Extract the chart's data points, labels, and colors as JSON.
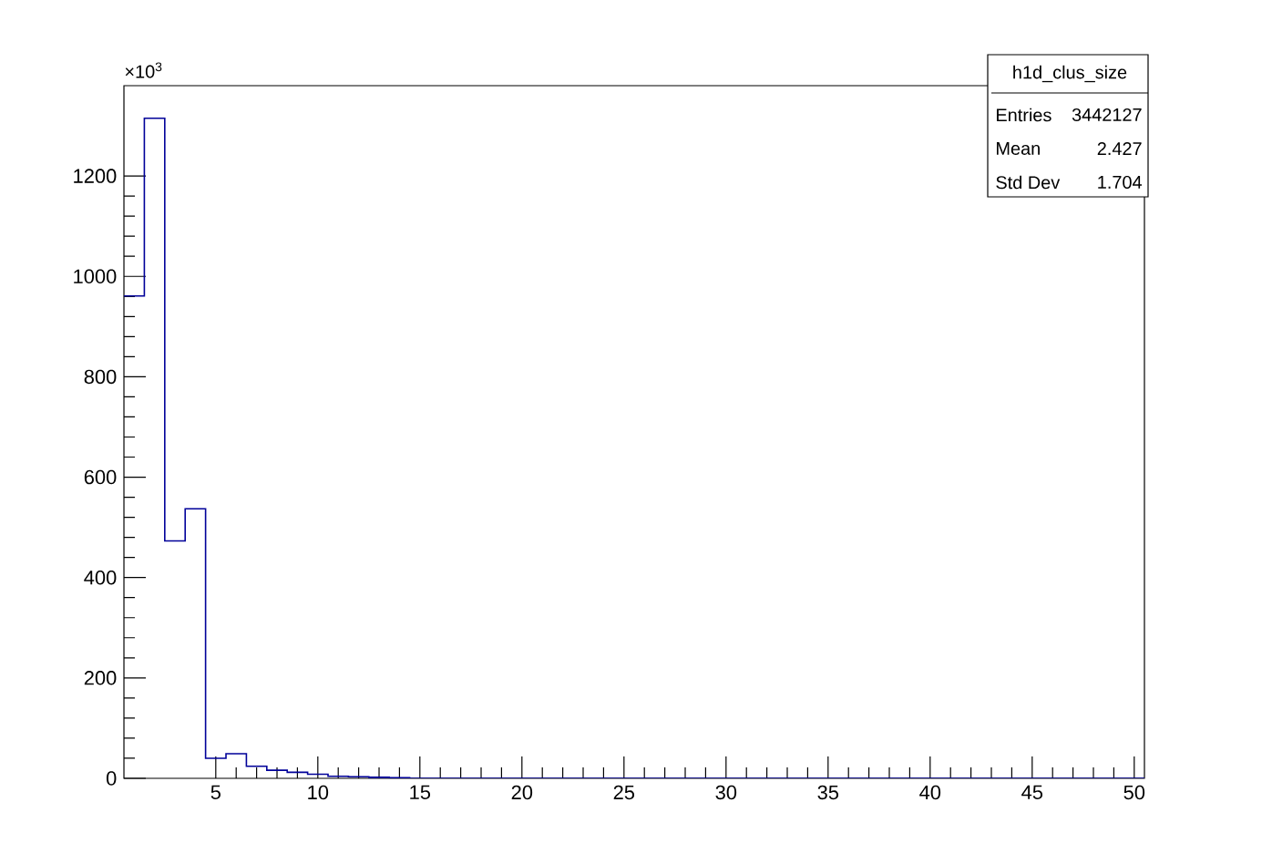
{
  "chart_data": {
    "type": "histogram",
    "bins": [
      0.5,
      1.5,
      2.5,
      3.5,
      4.5,
      5.5,
      6.5,
      7.5,
      8.5,
      9.5,
      10.5,
      11.5,
      12.5,
      13.5,
      14.5,
      15.5,
      16.5,
      17.5,
      18.5,
      19.5,
      20.5,
      21.5,
      22.5,
      23.5,
      24.5,
      25.5,
      26.5,
      27.5,
      28.5,
      29.5,
      30.5,
      31.5,
      32.5,
      33.5,
      34.5,
      35.5,
      36.5,
      37.5,
      38.5,
      39.5,
      40.5,
      41.5,
      42.5,
      43.5,
      44.5,
      45.5,
      46.5,
      47.5,
      48.5,
      49.5,
      50.5
    ],
    "values": [
      961,
      1315,
      473,
      537,
      40,
      49,
      24,
      16,
      12,
      8,
      4,
      3,
      2,
      1,
      0,
      0,
      0,
      0,
      0,
      0,
      0,
      0,
      0,
      0,
      0,
      0,
      0,
      0,
      0,
      0,
      0,
      0,
      0,
      0,
      0,
      0,
      0,
      0,
      0,
      0,
      0,
      0,
      0,
      0,
      0,
      0,
      0,
      0,
      0,
      0
    ],
    "color": "#000099",
    "xlim": [
      0.5,
      50.5
    ],
    "ylim": [
      0,
      1380
    ],
    "xticks": [
      5,
      10,
      15,
      20,
      25,
      30,
      35,
      40,
      45,
      50
    ],
    "yticks": [
      0,
      200,
      400,
      600,
      800,
      1000,
      1200
    ],
    "grid": false,
    "annotations": [
      "×10$^{3}$",
      "h1d_clus_size",
      "Entries",
      "3442127",
      "Mean",
      "2.427",
      "Std Dev",
      "1.704"
    ]
  }
}
